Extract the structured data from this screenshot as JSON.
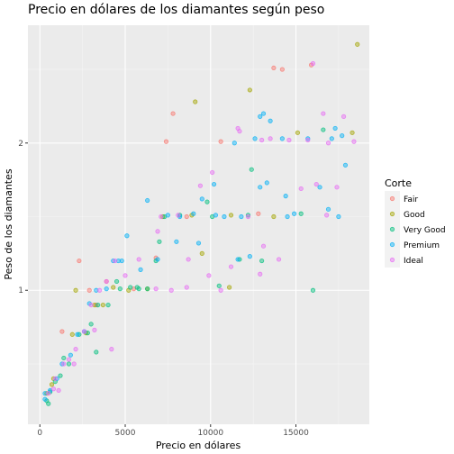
{
  "chart_data": {
    "type": "scatter",
    "title": "Precio en dólares de los diamantes según peso",
    "xlabel": "Precio en dólares",
    "ylabel": "Peso de los diamantes",
    "xlim": [
      -700,
      19300
    ],
    "ylim": [
      0.09,
      2.8
    ],
    "xticks": [
      {
        "value": 0,
        "label": "0"
      },
      {
        "value": 5000,
        "label": "5000"
      },
      {
        "value": 10000,
        "label": "10000"
      },
      {
        "value": 15000,
        "label": "15000"
      }
    ],
    "yticks": [
      {
        "value": 1,
        "label": "1"
      },
      {
        "value": 2,
        "label": "2"
      }
    ],
    "grid": true,
    "legend": {
      "title": "Corte",
      "position": "right",
      "entries": [
        "Fair",
        "Good",
        "Very Good",
        "Premium",
        "Ideal"
      ]
    },
    "colors": {
      "Fair": "#F8766D",
      "Good": "#A3A500",
      "Very Good": "#00BF7D",
      "Premium": "#00B0F6",
      "Ideal": "#E76BF3"
    },
    "series": [
      {
        "name": "Fair",
        "points": [
          [
            7400,
            2.01
          ],
          [
            7800,
            2.2
          ],
          [
            13700,
            2.51
          ],
          [
            14200,
            2.5
          ],
          [
            15900,
            2.53
          ],
          [
            10600,
            2.01
          ],
          [
            2300,
            1.2
          ],
          [
            3900,
            1.06
          ],
          [
            3300,
            0.9
          ],
          [
            1300,
            0.72
          ],
          [
            5500,
            1.01
          ],
          [
            8600,
            1.5
          ],
          [
            2900,
            1.0
          ],
          [
            12800,
            1.52
          ],
          [
            6800,
            1.22
          ]
        ]
      },
      {
        "name": "Good",
        "points": [
          [
            9100,
            2.28
          ],
          [
            12300,
            2.36
          ],
          [
            18600,
            2.67
          ],
          [
            15100,
            2.07
          ],
          [
            18300,
            2.07
          ],
          [
            2100,
            1.0
          ],
          [
            4300,
            1.02
          ],
          [
            3700,
            0.9
          ],
          [
            1900,
            0.7
          ],
          [
            800,
            0.4
          ],
          [
            400,
            0.3
          ],
          [
            5200,
            1.0
          ],
          [
            6300,
            1.01
          ],
          [
            7200,
            1.5
          ],
          [
            8900,
            1.51
          ],
          [
            11200,
            1.51
          ],
          [
            13700,
            1.5
          ],
          [
            9500,
            1.25
          ],
          [
            2700,
            0.71
          ],
          [
            3200,
            0.9
          ],
          [
            700,
            0.36
          ],
          [
            11100,
            1.02
          ]
        ]
      },
      {
        "name": "Very Good",
        "points": [
          [
            16600,
            2.09
          ],
          [
            12400,
            1.82
          ],
          [
            16000,
            1.0
          ],
          [
            15300,
            1.52
          ],
          [
            12200,
            1.51
          ],
          [
            10500,
            1.03
          ],
          [
            9800,
            1.6
          ],
          [
            7300,
            1.5
          ],
          [
            6300,
            1.01
          ],
          [
            5700,
            1.02
          ],
          [
            4700,
            1.01
          ],
          [
            3400,
            0.9
          ],
          [
            2800,
            0.71
          ],
          [
            2300,
            0.7
          ],
          [
            1700,
            0.5
          ],
          [
            1200,
            0.42
          ],
          [
            900,
            0.38
          ],
          [
            600,
            0.31
          ],
          [
            400,
            0.25
          ],
          [
            3300,
            0.58
          ],
          [
            4000,
            0.9
          ],
          [
            5800,
            1.01
          ],
          [
            13000,
            1.2
          ],
          [
            11700,
            1.21
          ],
          [
            10100,
            1.5
          ],
          [
            8200,
            1.51
          ],
          [
            6800,
            1.2
          ],
          [
            4500,
            1.06
          ],
          [
            5300,
            1.02
          ],
          [
            7000,
            1.33
          ],
          [
            3000,
            0.77
          ],
          [
            1400,
            0.54
          ],
          [
            500,
            0.23
          ]
        ]
      },
      {
        "name": "Premium",
        "points": [
          [
            12600,
            2.03
          ],
          [
            12900,
            2.18
          ],
          [
            13100,
            2.2
          ],
          [
            14200,
            2.03
          ],
          [
            17100,
            2.03
          ],
          [
            17300,
            2.1
          ],
          [
            17700,
            2.05
          ],
          [
            17900,
            1.85
          ],
          [
            17500,
            1.5
          ],
          [
            16400,
            1.7
          ],
          [
            14900,
            1.52
          ],
          [
            14500,
            1.5
          ],
          [
            13300,
            1.73
          ],
          [
            12900,
            1.7
          ],
          [
            11800,
            1.5
          ],
          [
            10800,
            1.5
          ],
          [
            10300,
            1.51
          ],
          [
            9500,
            1.62
          ],
          [
            9000,
            1.52
          ],
          [
            8200,
            1.5
          ],
          [
            7500,
            1.51
          ],
          [
            6300,
            1.61
          ],
          [
            5100,
            1.37
          ],
          [
            4800,
            1.2
          ],
          [
            4300,
            1.2
          ],
          [
            3900,
            1.01
          ],
          [
            3300,
            1.0
          ],
          [
            2900,
            0.91
          ],
          [
            2600,
            0.72
          ],
          [
            2200,
            0.7
          ],
          [
            1800,
            0.56
          ],
          [
            1300,
            0.5
          ],
          [
            1000,
            0.4
          ],
          [
            600,
            0.32
          ],
          [
            300,
            0.3
          ],
          [
            300,
            0.26
          ],
          [
            10200,
            1.72
          ],
          [
            9300,
            1.32
          ],
          [
            11600,
            1.21
          ],
          [
            12300,
            1.23
          ],
          [
            6900,
            1.21
          ],
          [
            8000,
            1.33
          ],
          [
            5900,
            1.14
          ],
          [
            4600,
            1.2
          ],
          [
            14400,
            1.64
          ],
          [
            16900,
            1.55
          ],
          [
            13500,
            2.15
          ],
          [
            11400,
            2.0
          ],
          [
            15700,
            2.03
          ]
        ]
      },
      {
        "name": "Ideal",
        "points": [
          [
            16000,
            2.54
          ],
          [
            16600,
            2.2
          ],
          [
            17800,
            2.18
          ],
          [
            18400,
            2.01
          ],
          [
            15700,
            2.02
          ],
          [
            16900,
            2.0
          ],
          [
            16200,
            1.72
          ],
          [
            17400,
            1.7
          ],
          [
            14600,
            2.02
          ],
          [
            13500,
            2.03
          ],
          [
            13000,
            2.02
          ],
          [
            11600,
            2.1
          ],
          [
            10100,
            1.8
          ],
          [
            9400,
            1.71
          ],
          [
            8100,
            1.51
          ],
          [
            7100,
            1.5
          ],
          [
            6900,
            1.4
          ],
          [
            8700,
            1.21
          ],
          [
            12900,
            1.11
          ],
          [
            13100,
            1.3
          ],
          [
            12200,
            1.5
          ],
          [
            5800,
            1.21
          ],
          [
            5000,
            1.1
          ],
          [
            4400,
            1.2
          ],
          [
            3900,
            1.06
          ],
          [
            3500,
            1.0
          ],
          [
            3000,
            0.9
          ],
          [
            2600,
            0.72
          ],
          [
            2100,
            0.6
          ],
          [
            1700,
            0.53
          ],
          [
            1400,
            0.5
          ],
          [
            1100,
            0.32
          ],
          [
            800,
            0.33
          ],
          [
            500,
            0.3
          ],
          [
            4200,
            0.6
          ],
          [
            3200,
            0.73
          ],
          [
            2000,
            0.5
          ],
          [
            900,
            0.4
          ],
          [
            7700,
            1.0
          ],
          [
            8600,
            1.02
          ],
          [
            9900,
            1.1
          ],
          [
            10600,
            1.0
          ],
          [
            6800,
            1.01
          ],
          [
            11200,
            1.16
          ],
          [
            14000,
            1.21
          ],
          [
            16800,
            1.51
          ],
          [
            15300,
            1.69
          ],
          [
            11700,
            2.08
          ]
        ]
      }
    ]
  }
}
